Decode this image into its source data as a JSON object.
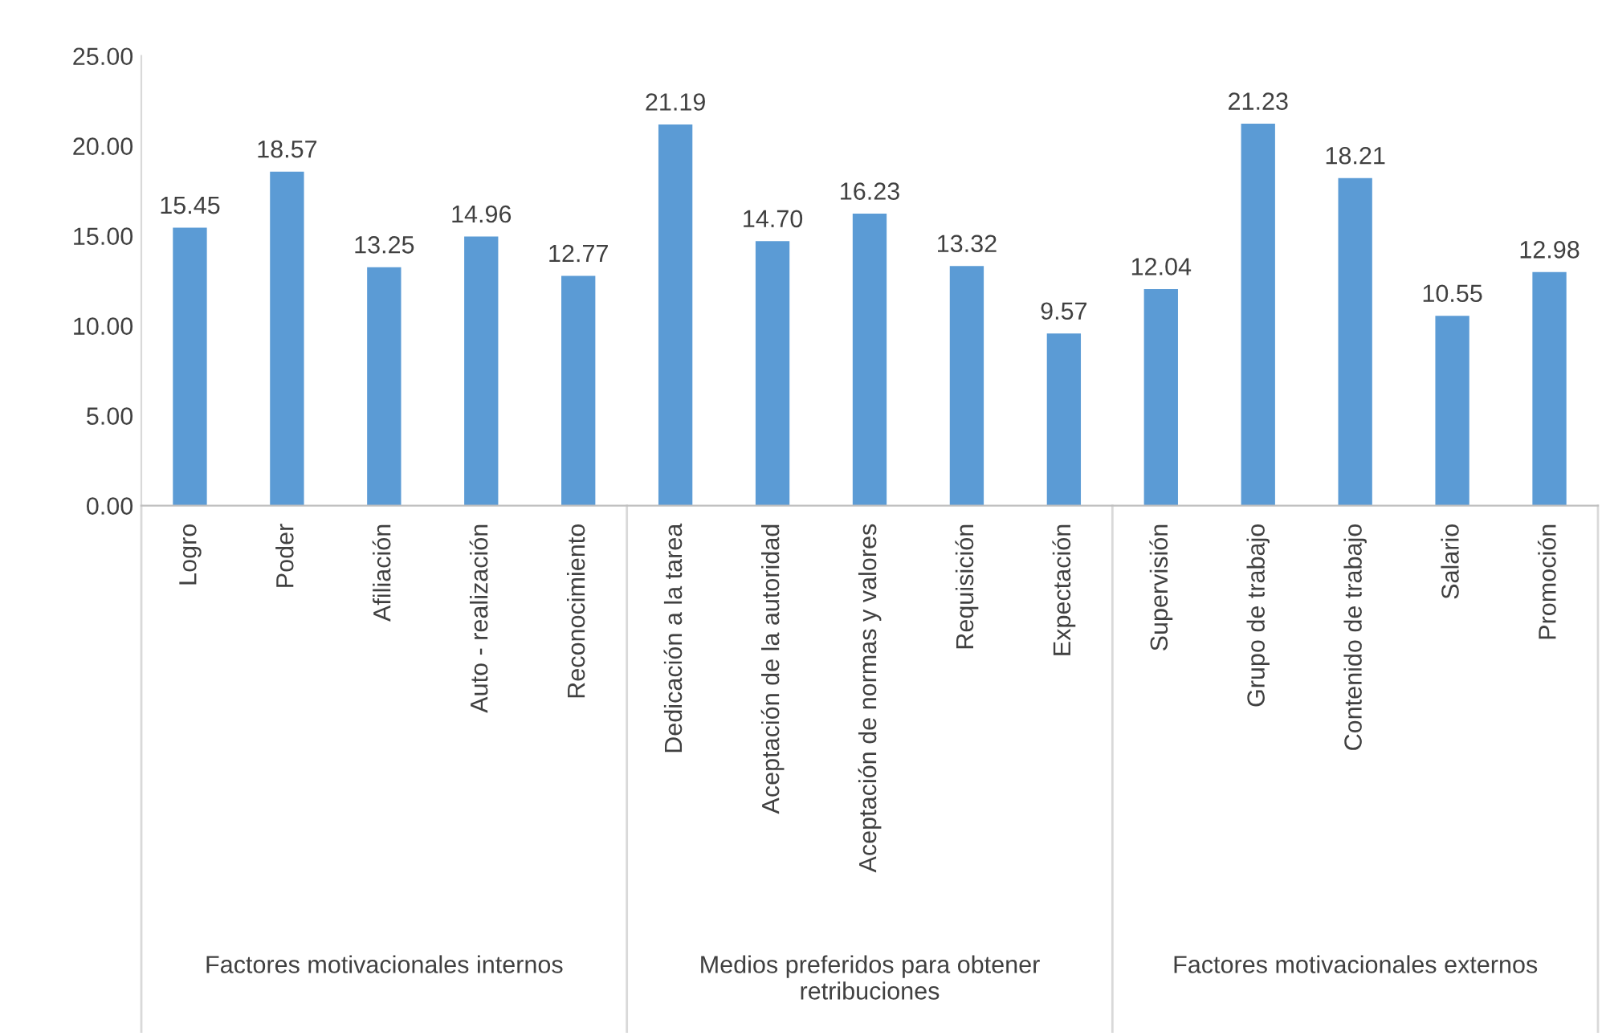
{
  "chart_data": {
    "type": "bar",
    "categories": [
      "Logro",
      "Poder",
      "Afiliación",
      "Auto - realización",
      "Reconocimiento",
      "Dedicación a la tarea",
      "Aceptación de la autoridad",
      "Aceptación de normas y valores",
      "Requisición",
      "Expectación",
      "Supervisión",
      "Grupo de trabajo",
      "Contenido de trabajo",
      "Salario",
      "Promoción"
    ],
    "values": [
      15.45,
      18.57,
      13.25,
      14.96,
      12.77,
      21.19,
      14.7,
      16.23,
      13.32,
      9.57,
      12.04,
      21.23,
      18.21,
      10.55,
      12.98
    ],
    "value_labels": [
      "15.45",
      "18.57",
      "13.25",
      "14.96",
      "12.77",
      "21.19",
      "14.70",
      "16.23",
      "13.32",
      "9.57",
      "12.04",
      "21.23",
      "18.21",
      "10.55",
      "12.98"
    ],
    "color": "#5b9bd5",
    "ylim": [
      0,
      25
    ],
    "yticks": [
      {
        "value": 0,
        "label": "0.00"
      },
      {
        "value": 5,
        "label": "5.00"
      },
      {
        "value": 10,
        "label": "10.00"
      },
      {
        "value": 15,
        "label": "15.00"
      },
      {
        "value": 20,
        "label": "20.00"
      },
      {
        "value": 25,
        "label": "25.00"
      }
    ],
    "grid": false,
    "annotations": [
      "Factores motivacionales internos",
      "Medios preferidos para obtener retribuciones",
      "Factores motivacionales externos"
    ]
  }
}
